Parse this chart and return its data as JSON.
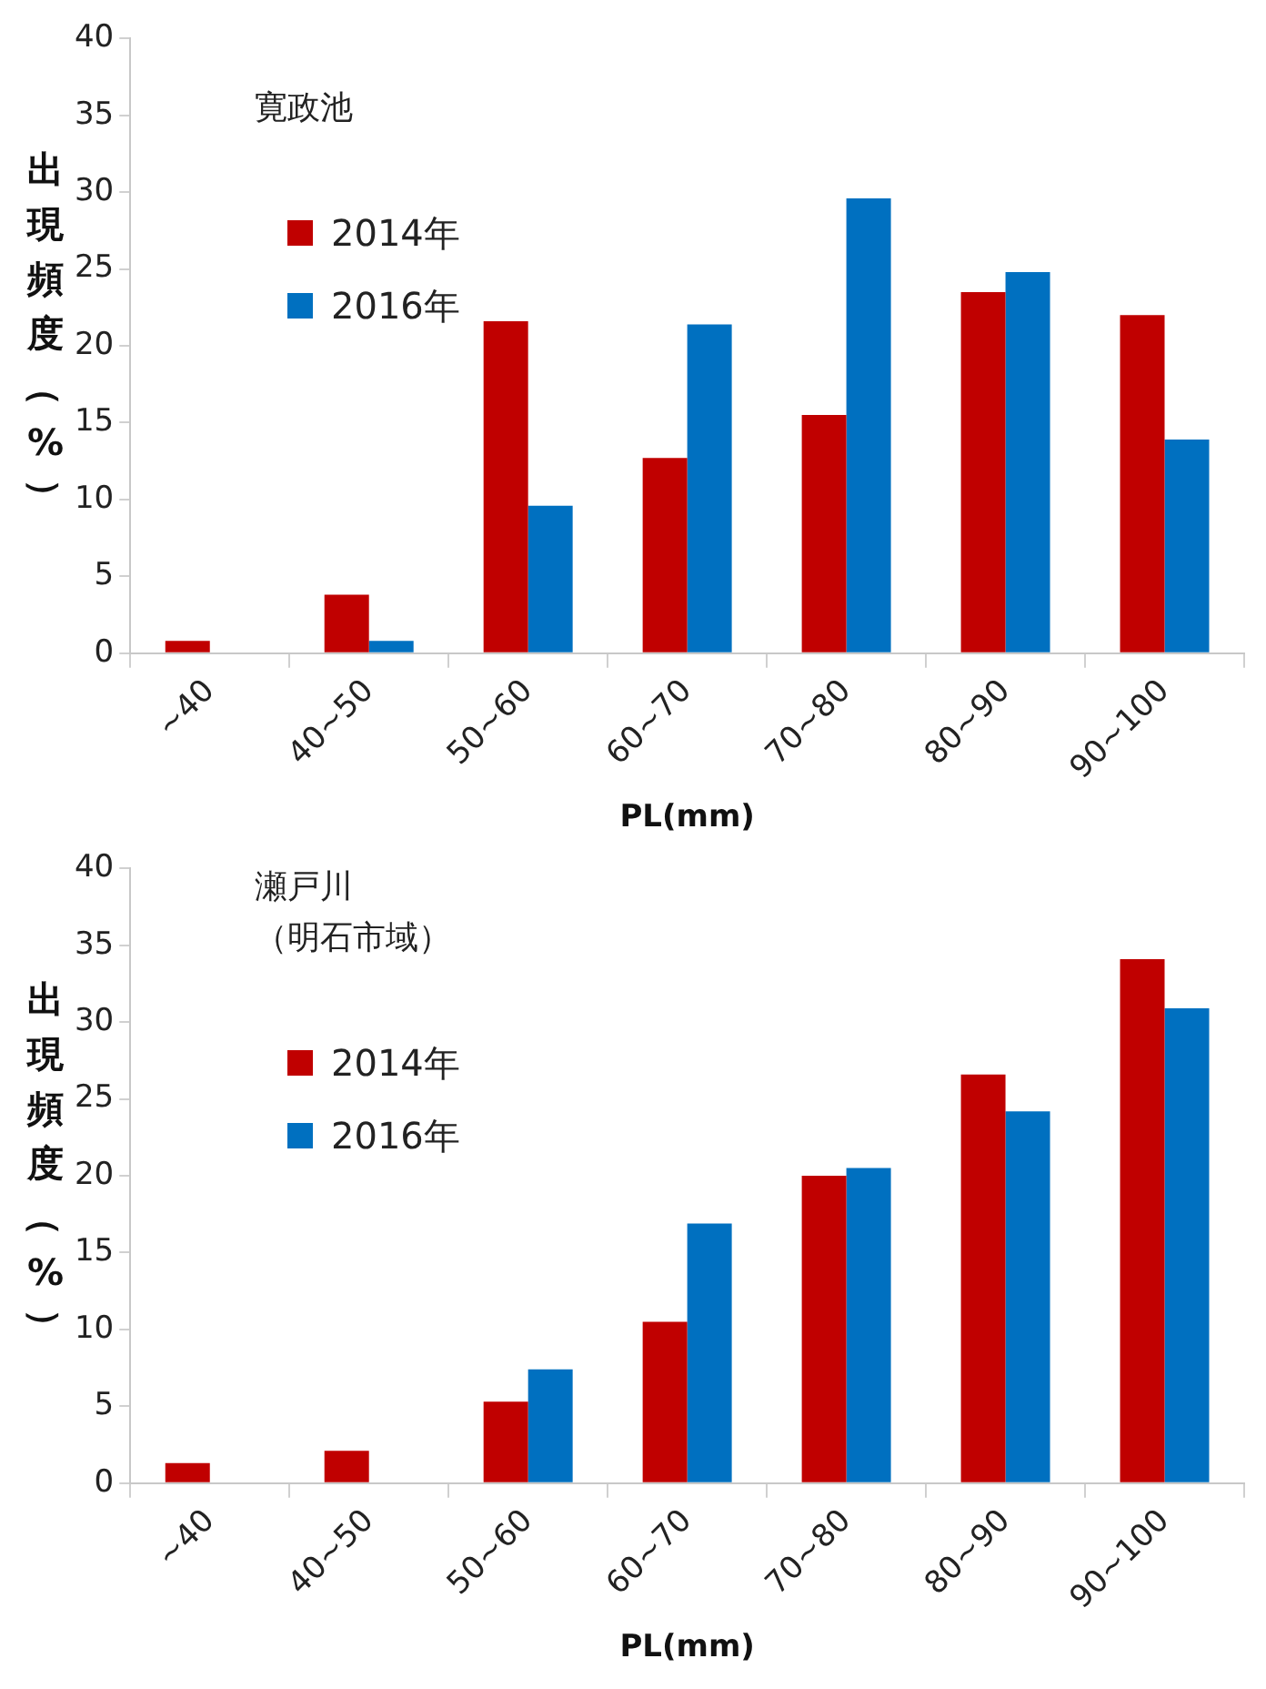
{
  "chart_data": [
    {
      "type": "bar",
      "title": "寛政池",
      "xlabel": "PL(mm)",
      "ylabel": "出現頻度（%）",
      "categories": [
        "~40",
        "40~50",
        "50~60",
        "60~70",
        "70~80",
        "80~90",
        "90~100"
      ],
      "series": [
        {
          "name": "2014年",
          "color": "#c00000",
          "values": [
            0.8,
            3.8,
            21.6,
            12.7,
            15.5,
            23.5,
            22.0
          ]
        },
        {
          "name": "2016年",
          "color": "#0070c0",
          "values": [
            0,
            0.8,
            9.6,
            21.4,
            29.6,
            24.8,
            13.9
          ]
        }
      ],
      "ylim": [
        0,
        40
      ],
      "yticks": [
        0,
        5,
        10,
        15,
        20,
        25,
        30,
        35,
        40
      ],
      "grid": false,
      "legend": "top left"
    },
    {
      "type": "bar",
      "title": "瀬戸川",
      "subtitle": "（明石市域）",
      "xlabel": "PL(mm)",
      "ylabel": "出現頻度（%）",
      "categories": [
        "~40",
        "40~50",
        "50~60",
        "60~70",
        "70~80",
        "80~90",
        "90~100"
      ],
      "series": [
        {
          "name": "2014年",
          "color": "#c00000",
          "values": [
            1.3,
            2.1,
            5.3,
            10.5,
            20.0,
            26.6,
            34.1
          ]
        },
        {
          "name": "2016年",
          "color": "#0070c0",
          "values": [
            0,
            0,
            7.4,
            16.9,
            20.5,
            24.2,
            30.9
          ]
        }
      ],
      "ylim": [
        0,
        40
      ],
      "yticks": [
        0,
        5,
        10,
        15,
        20,
        25,
        30,
        35,
        40
      ],
      "grid": false,
      "legend": "top left"
    }
  ]
}
